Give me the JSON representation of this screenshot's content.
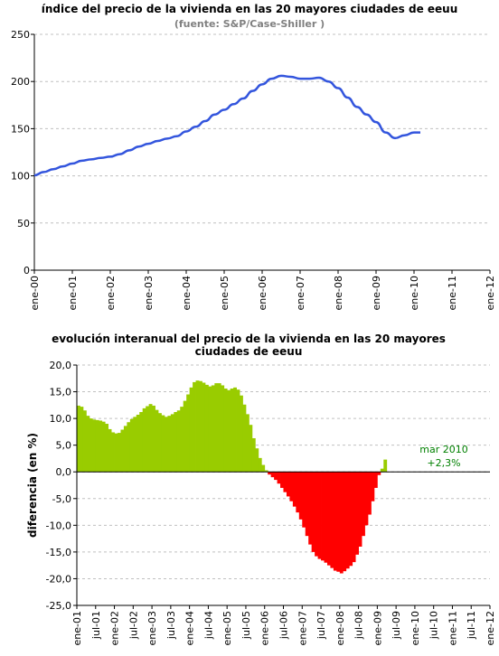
{
  "chart_data": [
    {
      "type": "line",
      "title": "índice del precio de la vivienda en las 20 mayores ciudades de eeuu",
      "subtitle": "(fuente:  S&P/Case-Shiller )",
      "ylim": [
        0,
        250
      ],
      "yticks": [
        0,
        50,
        100,
        150,
        200,
        250
      ],
      "xticks": [
        "ene-00",
        "ene-01",
        "ene-02",
        "ene-03",
        "ene-04",
        "ene-05",
        "ene-06",
        "ene-07",
        "ene-08",
        "ene-09",
        "ene-10",
        "ene-11",
        "ene-12"
      ],
      "grid": true,
      "line_color": "#3355dd",
      "series": [
        {
          "x": [
            "ene-00",
            "abr-00",
            "jul-00",
            "oct-00",
            "ene-01",
            "abr-01",
            "jul-01",
            "oct-01",
            "ene-02",
            "abr-02",
            "jul-02",
            "oct-02",
            "ene-03",
            "abr-03",
            "jul-03",
            "oct-03",
            "ene-04",
            "abr-04",
            "jul-04",
            "oct-04",
            "ene-05",
            "abr-05",
            "jul-05",
            "oct-05",
            "ene-06",
            "abr-06",
            "jul-06",
            "oct-06",
            "ene-07",
            "abr-07",
            "jul-07",
            "oct-07",
            "ene-08",
            "abr-08",
            "jul-08",
            "oct-08",
            "ene-09",
            "abr-09",
            "jul-09",
            "oct-09",
            "ene-10",
            "mar-10"
          ],
          "values": [
            100.6,
            104,
            107,
            110,
            113,
            116,
            117.5,
            119,
            120.3,
            123,
            127,
            131,
            134,
            137,
            139.5,
            142,
            147,
            152,
            158,
            165,
            170,
            176,
            182,
            190,
            197,
            203,
            206,
            205,
            203,
            203,
            204,
            200,
            193,
            183,
            173,
            165,
            157,
            146,
            140,
            143,
            146,
            146
          ]
        }
      ]
    },
    {
      "type": "bar",
      "title": "evolución interanual del precio de la vivienda en las 20 mayores ciudades de eeuu",
      "ylabel": "diferencia (en %)",
      "ylim": [
        -25,
        20
      ],
      "yticks": [
        "20,0",
        "15,0",
        "10,0",
        "5,0",
        "0,0",
        "-5,0",
        "-10,0",
        "-15,0",
        "-20,0",
        "-25,0"
      ],
      "xticks": [
        "ene-01",
        "jul-01",
        "ene-02",
        "jul-02",
        "ene-03",
        "jul-03",
        "ene-04",
        "jul-04",
        "ene-05",
        "jul-05",
        "ene-06",
        "jul-06",
        "ene-07",
        "jul-07",
        "ene-08",
        "jul-08",
        "ene-09",
        "jul-09",
        "ene-10",
        "jul-10",
        "ene-11",
        "jul-11",
        "ene-12"
      ],
      "positive_color": "#99cc00",
      "negative_color": "#ff0000",
      "grid": true,
      "annotation": {
        "line1": "mar 2010",
        "line2": "+2,3%"
      },
      "values": [
        12.4,
        12.2,
        11.5,
        10.5,
        10.0,
        9.8,
        9.7,
        9.6,
        9.4,
        9.0,
        8.0,
        7.4,
        7.2,
        7.3,
        7.9,
        8.6,
        9.3,
        9.9,
        10.3,
        10.7,
        11.2,
        11.9,
        12.3,
        12.7,
        12.4,
        11.6,
        11.0,
        10.6,
        10.3,
        10.5,
        10.8,
        11.2,
        11.5,
        12.2,
        13.3,
        14.5,
        15.8,
        16.8,
        17.1,
        17.0,
        16.7,
        16.3,
        16.0,
        16.2,
        16.6,
        16.6,
        16.2,
        15.6,
        15.3,
        15.6,
        15.8,
        15.4,
        14.3,
        12.6,
        10.8,
        8.8,
        6.3,
        4.4,
        2.6,
        1.3,
        0.3,
        -0.5,
        -1.0,
        -1.5,
        -2.2,
        -3.0,
        -3.8,
        -4.6,
        -5.5,
        -6.5,
        -7.6,
        -8.9,
        -10.4,
        -12.0,
        -13.6,
        -15.0,
        -15.8,
        -16.3,
        -16.6,
        -17.0,
        -17.5,
        -18.0,
        -18.5,
        -18.7,
        -19.0,
        -18.6,
        -18.1,
        -17.6,
        -16.9,
        -15.5,
        -14.0,
        -12.0,
        -10.0,
        -8.0,
        -5.5,
        -3.0,
        -0.6,
        0.6,
        2.3
      ]
    }
  ]
}
